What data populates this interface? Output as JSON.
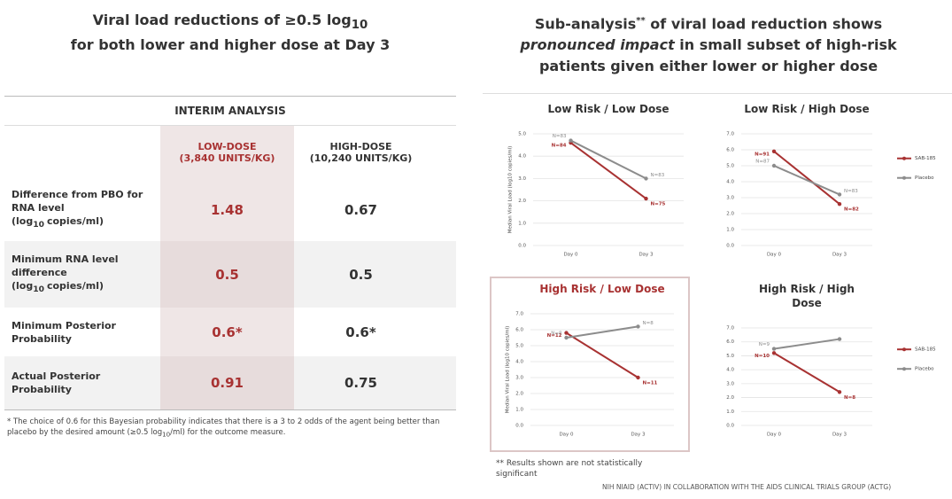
{
  "left": {
    "title": [
      "Viral load reductions of ≥0.5 log",
      "10",
      "for both lower and higher dose at Day 3"
    ],
    "table": {
      "caption": "INTERIM ANALYSIS",
      "columns": [
        [
          "LOW-DOSE",
          "(3,840 UNITS/KG)"
        ],
        [
          "HIGH-DOSE",
          "(10,240 UNITS/KG)"
        ]
      ],
      "rows": [
        {
          "label": [
            "Difference from PBO for RNA level (log",
            "10",
            "copies/ml)"
          ],
          "values": [
            1.48,
            0.67
          ]
        },
        {
          "label": [
            "Minimum RNA level difference (log",
            "10",
            "copies/ml)"
          ],
          "values": [
            0.5,
            0.5
          ]
        },
        {
          "label": [
            "Minimum Posterior Probability"
          ],
          "values": [
            "0.6*",
            "0.6*"
          ]
        },
        {
          "label": [
            "Actual Posterior Probability"
          ],
          "values": [
            0.91,
            0.75
          ]
        }
      ]
    },
    "footnote": [
      "* The choice of 0.6 for this Bayesian probability indicates that there is a 3 to 2 odds of the agent being better than placebo by the desired amount (≥0.5 log",
      "10",
      "/ml) for the outcome measure."
    ]
  },
  "right": {
    "title": [
      "Sub-analysis",
      "**",
      " of viral load reduction shows ",
      "pronounced impact",
      " in small subset of high-risk patients given either lower or higher dose"
    ],
    "footnote": "** Results shown are not statistically significant",
    "source": "NIH NIAID (ACTIV) IN COLLABORATION WITH THE AIDS CLINICAL TRIALS GROUP (ACTG)"
  },
  "chart_data": [
    {
      "type": "line",
      "title": "Low Risk / Low Dose",
      "title_color": "#333333",
      "ylabel": "Median Viral Load (log10 copies/ml)",
      "categories": [
        "Day 0",
        "Day 3"
      ],
      "ylim": [
        0,
        5
      ],
      "yticks": [
        {
          "value": 0,
          "label": "0.0"
        },
        {
          "value": 1,
          "label": "1.0"
        },
        {
          "value": 2,
          "label": "2.0"
        },
        {
          "value": 3,
          "label": "3.0"
        },
        {
          "value": 4,
          "label": "4.0"
        },
        {
          "value": 5,
          "label": "5.0"
        }
      ],
      "grid": true,
      "series": [
        {
          "name": "SAB-185",
          "color": "#a83232",
          "values": [
            4.6,
            2.1
          ],
          "labels": [
            "N=84",
            "N=75"
          ]
        },
        {
          "name": "Placebo",
          "color": "#8c8c8c",
          "values": [
            4.7,
            3.0
          ],
          "labels": [
            "N=83",
            "N=83"
          ]
        }
      ]
    },
    {
      "type": "line",
      "title": "Low Risk / High Dose",
      "title_color": "#333333",
      "categories": [
        "Day 0",
        "Day 3"
      ],
      "ylim": [
        0,
        7
      ],
      "yticks": [
        {
          "value": 0,
          "label": "0.0"
        },
        {
          "value": 1,
          "label": "1.0"
        },
        {
          "value": 2,
          "label": "2.0"
        },
        {
          "value": 3,
          "label": "3.0"
        },
        {
          "value": 4,
          "label": "4.0"
        },
        {
          "value": 5,
          "label": "5.0"
        },
        {
          "value": 6,
          "label": "6.0"
        },
        {
          "value": 7,
          "label": "7.0"
        }
      ],
      "grid": true,
      "legend": "right",
      "series": [
        {
          "name": "SAB-185",
          "color": "#a83232",
          "values": [
            5.9,
            2.6
          ],
          "labels": [
            "N=91",
            "N=82"
          ]
        },
        {
          "name": "Placebo",
          "color": "#8c8c8c",
          "values": [
            5.0,
            3.2
          ],
          "labels": [
            "N=87",
            "N=83"
          ]
        }
      ]
    },
    {
      "type": "line",
      "title": "High Risk / Low Dose",
      "title_color": "#a83232",
      "ylabel": "Median Viral Load (log10 copies/ml)",
      "categories": [
        "Day 0",
        "Day 3"
      ],
      "ylim": [
        0,
        7
      ],
      "yticks": [
        {
          "value": 0,
          "label": "0.0"
        },
        {
          "value": 1,
          "label": "1.0"
        },
        {
          "value": 2,
          "label": "2.0"
        },
        {
          "value": 3,
          "label": "3.0"
        },
        {
          "value": 4,
          "label": "4.0"
        },
        {
          "value": 5,
          "label": "5.0"
        },
        {
          "value": 6,
          "label": "6.0"
        },
        {
          "value": 7,
          "label": "7.0"
        }
      ],
      "grid": true,
      "series": [
        {
          "name": "SAB-185",
          "color": "#a83232",
          "values": [
            5.8,
            3.0
          ],
          "labels": [
            "N=12",
            "N=11"
          ]
        },
        {
          "name": "Placebo",
          "color": "#8c8c8c",
          "values": [
            5.5,
            6.2
          ],
          "labels": [
            "N=8",
            "N=8"
          ]
        }
      ]
    },
    {
      "type": "line",
      "title": "High Risk / High Dose",
      "title_color": "#333333",
      "categories": [
        "Day 0",
        "Day 3"
      ],
      "ylim": [
        0,
        7
      ],
      "yticks": [
        {
          "value": 0,
          "label": "0.0"
        },
        {
          "value": 1,
          "label": "1.0"
        },
        {
          "value": 2,
          "label": "2.0"
        },
        {
          "value": 3,
          "label": "3.0"
        },
        {
          "value": 4,
          "label": "4.0"
        },
        {
          "value": 5,
          "label": "5.0"
        },
        {
          "value": 6,
          "label": "6.0"
        },
        {
          "value": 7,
          "label": "7.0"
        }
      ],
      "grid": true,
      "legend": "right",
      "series": [
        {
          "name": "SAB-185",
          "color": "#a83232",
          "values": [
            5.2,
            2.4
          ],
          "labels": [
            "N=10",
            "N=8"
          ]
        },
        {
          "name": "Placebo",
          "color": "#8c8c8c",
          "values": [
            5.5,
            6.2
          ],
          "labels": [
            "N=9",
            null
          ]
        }
      ]
    }
  ]
}
